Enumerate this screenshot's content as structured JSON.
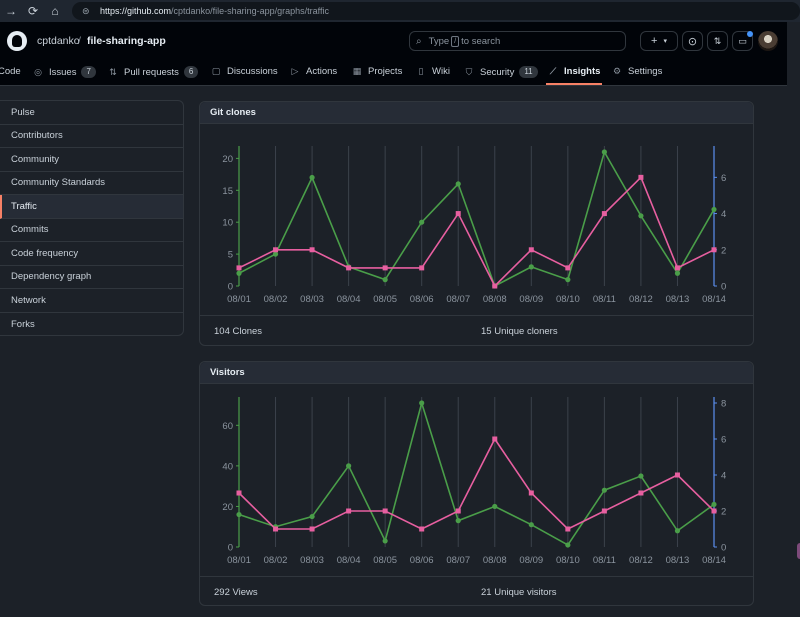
{
  "browser": {
    "url_host": "https://github.com",
    "url_path": "/cptdanko/file-sharing-app/graphs/traffic"
  },
  "header": {
    "owner": "cptdanko",
    "separator": "/",
    "repo": "file-sharing-app",
    "search_prefix": "Type",
    "search_key": "/",
    "search_suffix": "to search",
    "plus_label": "+"
  },
  "nav": {
    "tabs": [
      {
        "label": "Code",
        "icon": "code-icon"
      },
      {
        "label": "Issues",
        "icon": "issue-icon",
        "count": "7"
      },
      {
        "label": "Pull requests",
        "icon": "pull-request-icon",
        "count": "6"
      },
      {
        "label": "Discussions",
        "icon": "discussion-icon"
      },
      {
        "label": "Actions",
        "icon": "play-icon"
      },
      {
        "label": "Projects",
        "icon": "table-icon"
      },
      {
        "label": "Wiki",
        "icon": "book-icon"
      },
      {
        "label": "Security",
        "icon": "shield-icon",
        "count": "11"
      },
      {
        "label": "Insights",
        "icon": "graph-icon",
        "active": true
      },
      {
        "label": "Settings",
        "icon": "gear-icon"
      }
    ]
  },
  "sidebar": {
    "items": [
      "Pulse",
      "Contributors",
      "Community",
      "Community Standards",
      "Traffic",
      "Commits",
      "Code frequency",
      "Dependency graph",
      "Network",
      "Forks"
    ],
    "active_index": 4
  },
  "clones": {
    "title": "Git clones",
    "total_label": "104 Clones",
    "unique_label": "15 Unique cloners"
  },
  "visitors": {
    "title": "Visitors",
    "total_label": "292 Views",
    "unique_label": "21 Unique visitors"
  },
  "colors": {
    "total_series": "#4a9e49",
    "unique_series": "#e75fa0",
    "right_axis": "#5b8ff0",
    "active_tab": "#f78166"
  },
  "chart_data": [
    {
      "type": "line",
      "x": [
        "08/01",
        "08/02",
        "08/03",
        "08/04",
        "08/05",
        "08/06",
        "08/07",
        "08/08",
        "08/09",
        "08/10",
        "08/11",
        "08/12",
        "08/13",
        "08/14"
      ],
      "series": [
        {
          "name": "Clones",
          "axis": "left",
          "values": [
            2,
            5,
            17,
            3,
            1,
            10,
            16,
            0,
            3,
            1,
            21,
            11,
            2,
            12
          ]
        },
        {
          "name": "Unique cloners",
          "axis": "right",
          "values": [
            1,
            2,
            2,
            1,
            1,
            1,
            4,
            0,
            2,
            1,
            4,
            6,
            1,
            2
          ]
        }
      ],
      "y_left_ticks": [
        0,
        5,
        10,
        15,
        20
      ],
      "y_left_range": [
        0,
        21
      ],
      "y_right_ticks": [
        0,
        2,
        4,
        6
      ],
      "y_right_range": [
        0,
        7.4
      ],
      "grid": "vertical"
    },
    {
      "type": "line",
      "x": [
        "08/01",
        "08/02",
        "08/03",
        "08/04",
        "08/05",
        "08/06",
        "08/07",
        "08/08",
        "08/09",
        "08/10",
        "08/11",
        "08/12",
        "08/13",
        "08/14"
      ],
      "series": [
        {
          "name": "Views",
          "axis": "left",
          "values": [
            16,
            10,
            15,
            40,
            3,
            71,
            13,
            20,
            11,
            1,
            28,
            35,
            8,
            21
          ]
        },
        {
          "name": "Unique visitors",
          "axis": "right",
          "values": [
            3,
            1,
            1,
            2,
            2,
            1,
            2,
            6,
            3,
            1,
            2,
            3,
            4,
            2
          ]
        }
      ],
      "y_left_ticks": [
        0,
        20,
        40,
        60
      ],
      "y_left_range": [
        0,
        71
      ],
      "y_right_ticks": [
        0,
        2,
        4,
        6,
        8
      ],
      "y_right_range": [
        0,
        8
      ],
      "grid": "vertical"
    }
  ]
}
